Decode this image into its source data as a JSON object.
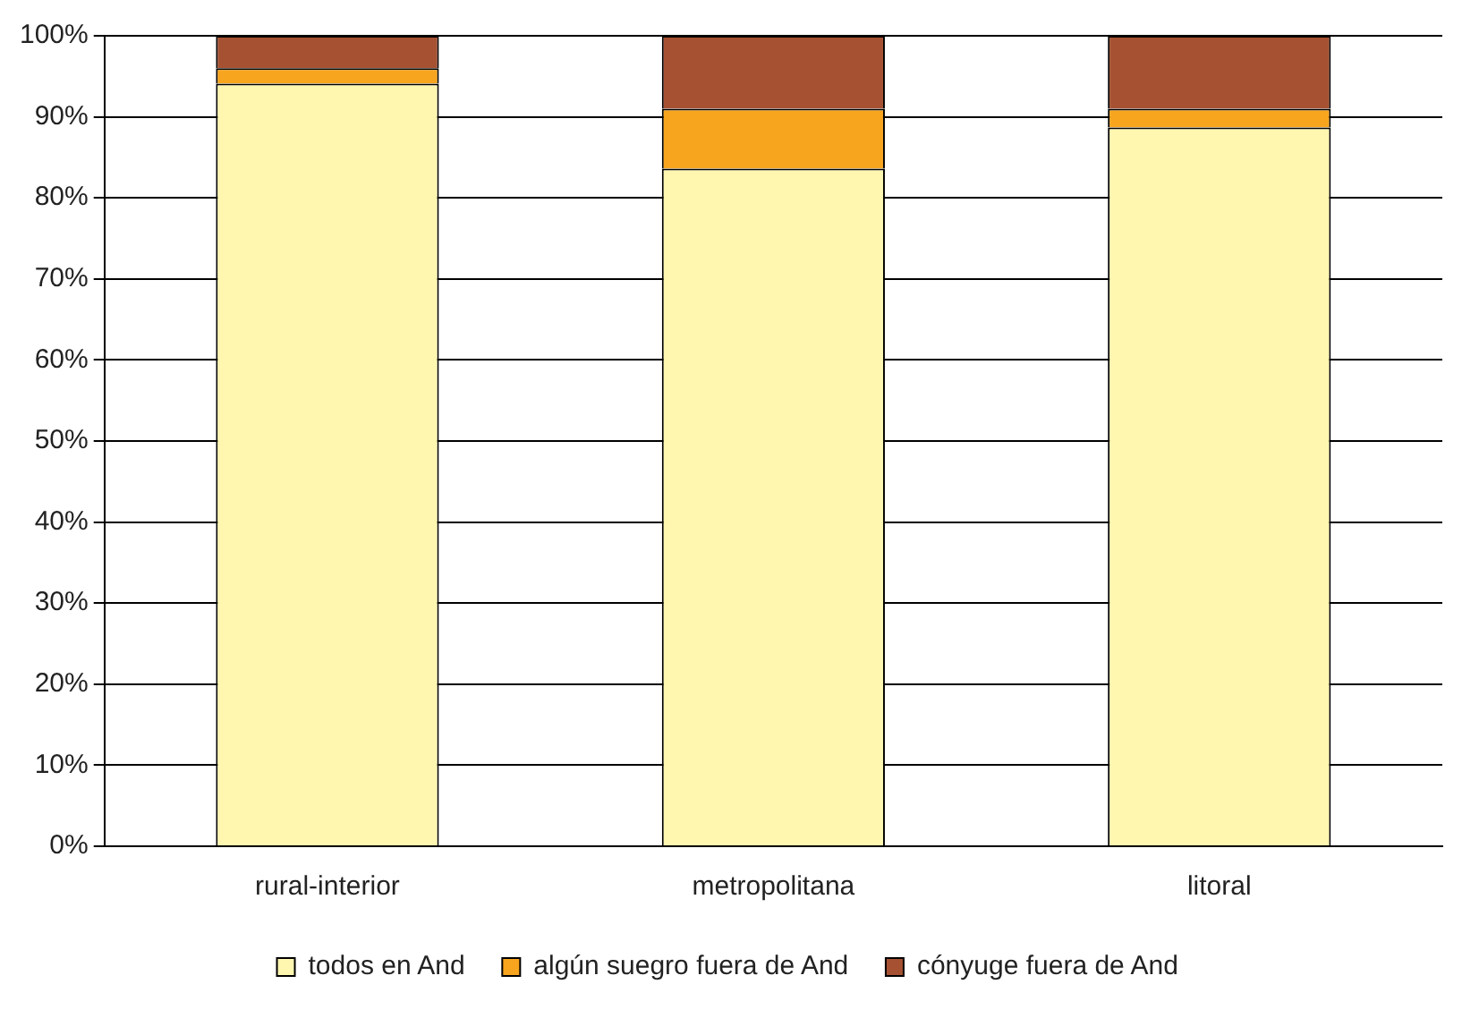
{
  "chart_data": {
    "type": "bar",
    "stacked": true,
    "categories": [
      "rural-interior",
      "metropolitana",
      "litoral"
    ],
    "series": [
      {
        "name": "todos en And",
        "color": "#fff6b0",
        "values": [
          94.1,
          83.6,
          88.7
        ]
      },
      {
        "name": "algún suegro fuera de And",
        "color": "#f7a51e",
        "values": [
          1.9,
          7.4,
          2.3
        ]
      },
      {
        "name": "cónyuge fuera de And",
        "color": "#a65232",
        "values": [
          4.0,
          9.0,
          9.0
        ]
      }
    ],
    "ylim": [
      0,
      100
    ],
    "yticks": [
      {
        "value": 0,
        "label": "0%"
      },
      {
        "value": 10,
        "label": "10%"
      },
      {
        "value": 20,
        "label": "20%"
      },
      {
        "value": 30,
        "label": "30%"
      },
      {
        "value": 40,
        "label": "40%"
      },
      {
        "value": 50,
        "label": "50%"
      },
      {
        "value": 60,
        "label": "60%"
      },
      {
        "value": 70,
        "label": "70%"
      },
      {
        "value": 80,
        "label": "80%"
      },
      {
        "value": 90,
        "label": "90%"
      },
      {
        "value": 100,
        "label": "100%"
      }
    ],
    "grid": "y",
    "legend": "bottom"
  }
}
